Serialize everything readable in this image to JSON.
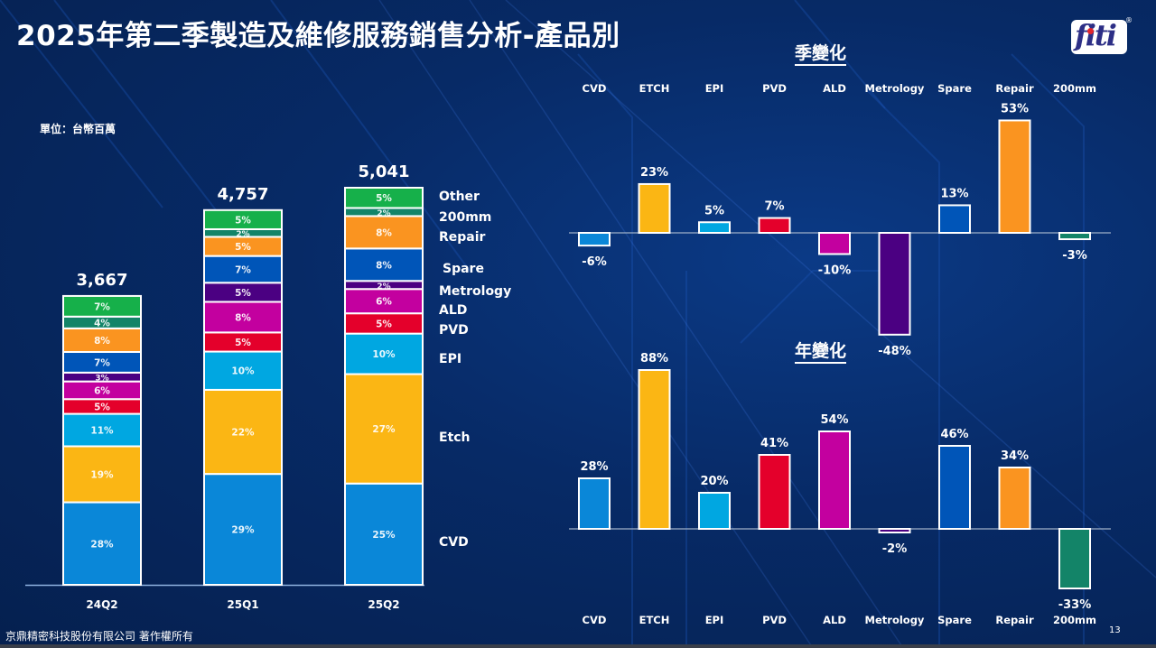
{
  "header": {
    "title": "2025年第二季製造及維修服務銷售分析-產品別",
    "logo_text": "fiti",
    "logo_reg": "®"
  },
  "unit_label": "單位：台幣百萬",
  "footer": {
    "copyright": "京鼎精密科技股份有限公司 著作權所有",
    "page_number": "13"
  },
  "colors": {
    "CVD": "#0a87d8",
    "Etch": "#fbb614",
    "EPI": "#00a7e1",
    "PVD": "#e4002b",
    "ALD": "#c3009f",
    "Metrology": "#4b0082",
    "Spare": "#0055b8",
    "Repair": "#fa9420",
    "200mm": "#138468",
    "Other": "#16b04a"
  },
  "chart_data": [
    {
      "type": "bar",
      "stacked": true,
      "title": "2025年第二季製造及維修服務銷售分析-產品別",
      "ylabel": "單位：台幣百萬",
      "categories": [
        "24Q2",
        "25Q1",
        "25Q2"
      ],
      "totals": [
        3667,
        4757,
        5041
      ],
      "totals_labels": [
        "3,667",
        "4,757",
        "5,041"
      ],
      "segments_bottom_to_top": [
        "CVD",
        "Etch",
        "EPI",
        "PVD",
        "ALD",
        "Metrology",
        "Spare",
        "Repair",
        "200mm",
        "Other"
      ],
      "legend_labels": [
        "Other",
        "200mm",
        "Repair",
        "Spare",
        "Metrology",
        "ALD",
        "PVD",
        "EPI",
        "Etch",
        "CVD"
      ],
      "legend_placement": "right",
      "series": [
        {
          "name": "CVD",
          "values": [
            28,
            29,
            25
          ]
        },
        {
          "name": "Etch",
          "values": [
            19,
            22,
            27
          ]
        },
        {
          "name": "EPI",
          "values": [
            11,
            10,
            10
          ]
        },
        {
          "name": "PVD",
          "values": [
            5,
            5,
            5
          ]
        },
        {
          "name": "ALD",
          "values": [
            6,
            8,
            6
          ]
        },
        {
          "name": "Metrology",
          "values": [
            3,
            5,
            2
          ]
        },
        {
          "name": "Spare",
          "values": [
            7,
            7,
            8
          ]
        },
        {
          "name": "Repair",
          "values": [
            8,
            5,
            8
          ]
        },
        {
          "name": "200mm",
          "values": [
            4,
            2,
            2
          ]
        },
        {
          "name": "Other",
          "values": [
            7,
            5,
            5
          ]
        }
      ],
      "value_unit": "%"
    },
    {
      "type": "bar",
      "title": "季變化",
      "categories": [
        "CVD",
        "ETCH",
        "EPI",
        "PVD",
        "ALD",
        "Metrology",
        "Spare",
        "Repair",
        "200mm"
      ],
      "color_keys": [
        "CVD",
        "Etch",
        "EPI",
        "PVD",
        "ALD",
        "Metrology",
        "Spare",
        "Repair",
        "200mm"
      ],
      "values": [
        -6,
        23,
        5,
        7,
        -10,
        -48,
        13,
        53,
        -3
      ],
      "labels": [
        "-6%",
        "23%",
        "5%",
        "7%",
        "-10%",
        "-48%",
        "13%",
        "53%",
        "-3%"
      ],
      "category_axis": "top"
    },
    {
      "type": "bar",
      "title": "年變化",
      "categories": [
        "CVD",
        "ETCH",
        "EPI",
        "PVD",
        "ALD",
        "Metrology",
        "Spare",
        "Repair",
        "200mm"
      ],
      "color_keys": [
        "CVD",
        "Etch",
        "EPI",
        "PVD",
        "ALD",
        "Metrology",
        "Spare",
        "Repair",
        "200mm"
      ],
      "values": [
        28,
        88,
        20,
        41,
        54,
        -2,
        46,
        34,
        -33
      ],
      "labels": [
        "28%",
        "88%",
        "20%",
        "41%",
        "54%",
        "-2%",
        "46%",
        "34%",
        "-33%"
      ],
      "category_axis": "bottom"
    }
  ]
}
